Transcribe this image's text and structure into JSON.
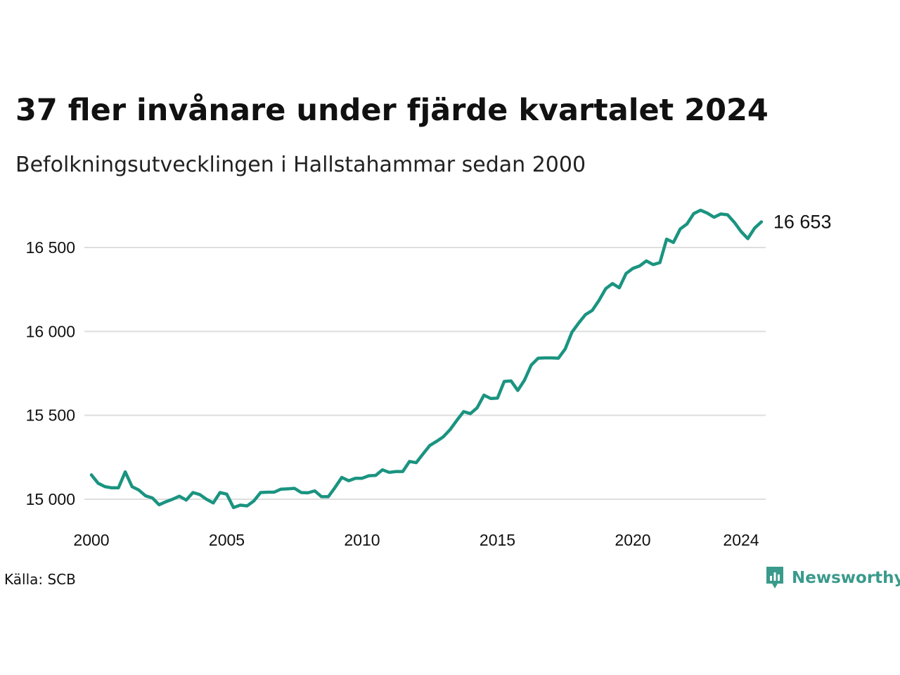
{
  "title": "37 fler invånare under fjärde kvartalet 2024",
  "subtitle": "Befolkningsutvecklingen i Hallstahammar sedan 2000",
  "source": "Källa: SCB",
  "logo": {
    "text": "Newsworthy",
    "icon": "newsworthy-logo-icon"
  },
  "colors": {
    "line": "#1a9480",
    "grid": "#dedede",
    "logo": "#3a9a8c"
  },
  "chart_data": {
    "type": "line",
    "title": "37 fler invånare under fjärde kvartalet 2024",
    "subtitle": "Befolkningsutvecklingen i Hallstahammar sedan 2000",
    "xlabel": "",
    "ylabel": "",
    "xlim": [
      2000,
      2025
    ],
    "ylim": [
      14900,
      16780
    ],
    "x_ticks": [
      2000,
      2005,
      2010,
      2015,
      2020,
      2024
    ],
    "x_tick_labels": [
      "2000",
      "2005",
      "2010",
      "2015",
      "2020",
      "2024"
    ],
    "y_ticks": [
      15000,
      15500,
      16000,
      16500
    ],
    "y_tick_labels": [
      "15 000",
      "15 500",
      "16 000",
      "16 500"
    ],
    "grid": "horizontal",
    "end_label": "16 653",
    "series": [
      {
        "x_start": 2000.0,
        "x_step": 0.25,
        "values": [
          15145,
          15095,
          15075,
          15068,
          15068,
          15163,
          15075,
          15055,
          15020,
          15008,
          14967,
          14985,
          15000,
          15018,
          14995,
          15040,
          15028,
          15000,
          14978,
          15040,
          15030,
          14950,
          14965,
          14960,
          14990,
          15040,
          15042,
          15042,
          15060,
          15062,
          15065,
          15040,
          15038,
          15050,
          15015,
          15015,
          15070,
          15130,
          15110,
          15125,
          15125,
          15140,
          15142,
          15175,
          15160,
          15165,
          15165,
          15225,
          15218,
          15270,
          15320,
          15345,
          15372,
          15415,
          15470,
          15522,
          15510,
          15545,
          15620,
          15600,
          15602,
          15702,
          15705,
          15648,
          15710,
          15800,
          15840,
          15842,
          15842,
          15840,
          15895,
          15995,
          16050,
          16100,
          16125,
          16185,
          16255,
          16285,
          16260,
          16345,
          16375,
          16390,
          16420,
          16398,
          16410,
          16550,
          16530,
          16610,
          16640,
          16702,
          16722,
          16705,
          16680,
          16700,
          16695,
          16650,
          16595,
          16553,
          16616,
          16653
        ]
      }
    ]
  }
}
